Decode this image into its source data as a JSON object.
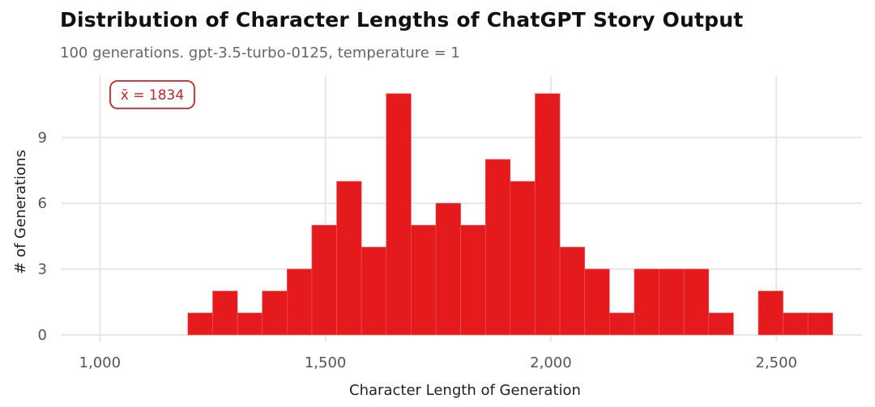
{
  "title": "Distribution of Character Lengths of ChatGPT Story Output",
  "subtitle": "100 generations. gpt-3.5-turbo-0125, temperature = 1",
  "colors": {
    "bar": "#e41a1c",
    "grid": "#e6e6e6",
    "annotation": "#cc2222"
  },
  "chart_data": {
    "type": "bar",
    "xlabel": "Character Length of Generation",
    "ylabel": "# of Generations",
    "xlim": [
      915,
      2690
    ],
    "ylim": [
      -0.3,
      11.8
    ],
    "bin_width": 55,
    "x_ticks": [
      1000,
      1500,
      2000,
      2500
    ],
    "x_tick_labels": [
      "1,000",
      "1,500",
      "2,000",
      "2,500"
    ],
    "y_ticks": [
      0,
      3,
      6,
      9
    ],
    "y_tick_labels": [
      "0",
      "3",
      "6",
      "9"
    ],
    "grid": true,
    "annotation": {
      "label": "x̄ = 1834",
      "value": 1834
    },
    "bins": [
      {
        "x0": 1195,
        "x1": 1250,
        "count": 1
      },
      {
        "x0": 1250,
        "x1": 1305,
        "count": 2
      },
      {
        "x0": 1305,
        "x1": 1360,
        "count": 1
      },
      {
        "x0": 1360,
        "x1": 1415,
        "count": 2
      },
      {
        "x0": 1415,
        "x1": 1470,
        "count": 3
      },
      {
        "x0": 1470,
        "x1": 1525,
        "count": 5
      },
      {
        "x0": 1525,
        "x1": 1580,
        "count": 7
      },
      {
        "x0": 1580,
        "x1": 1635,
        "count": 4
      },
      {
        "x0": 1635,
        "x1": 1690,
        "count": 11
      },
      {
        "x0": 1690,
        "x1": 1745,
        "count": 5
      },
      {
        "x0": 1745,
        "x1": 1800,
        "count": 6
      },
      {
        "x0": 1800,
        "x1": 1855,
        "count": 5
      },
      {
        "x0": 1855,
        "x1": 1910,
        "count": 8
      },
      {
        "x0": 1910,
        "x1": 1965,
        "count": 7
      },
      {
        "x0": 1965,
        "x1": 2020,
        "count": 11
      },
      {
        "x0": 2020,
        "x1": 2075,
        "count": 4
      },
      {
        "x0": 2075,
        "x1": 2130,
        "count": 3
      },
      {
        "x0": 2130,
        "x1": 2185,
        "count": 1
      },
      {
        "x0": 2185,
        "x1": 2240,
        "count": 3
      },
      {
        "x0": 2240,
        "x1": 2295,
        "count": 3
      },
      {
        "x0": 2295,
        "x1": 2350,
        "count": 3
      },
      {
        "x0": 2350,
        "x1": 2405,
        "count": 1
      },
      {
        "x0": 2405,
        "x1": 2460,
        "count": 0
      },
      {
        "x0": 2460,
        "x1": 2515,
        "count": 2
      },
      {
        "x0": 2515,
        "x1": 2570,
        "count": 1
      },
      {
        "x0": 2570,
        "x1": 2625,
        "count": 1
      }
    ]
  }
}
